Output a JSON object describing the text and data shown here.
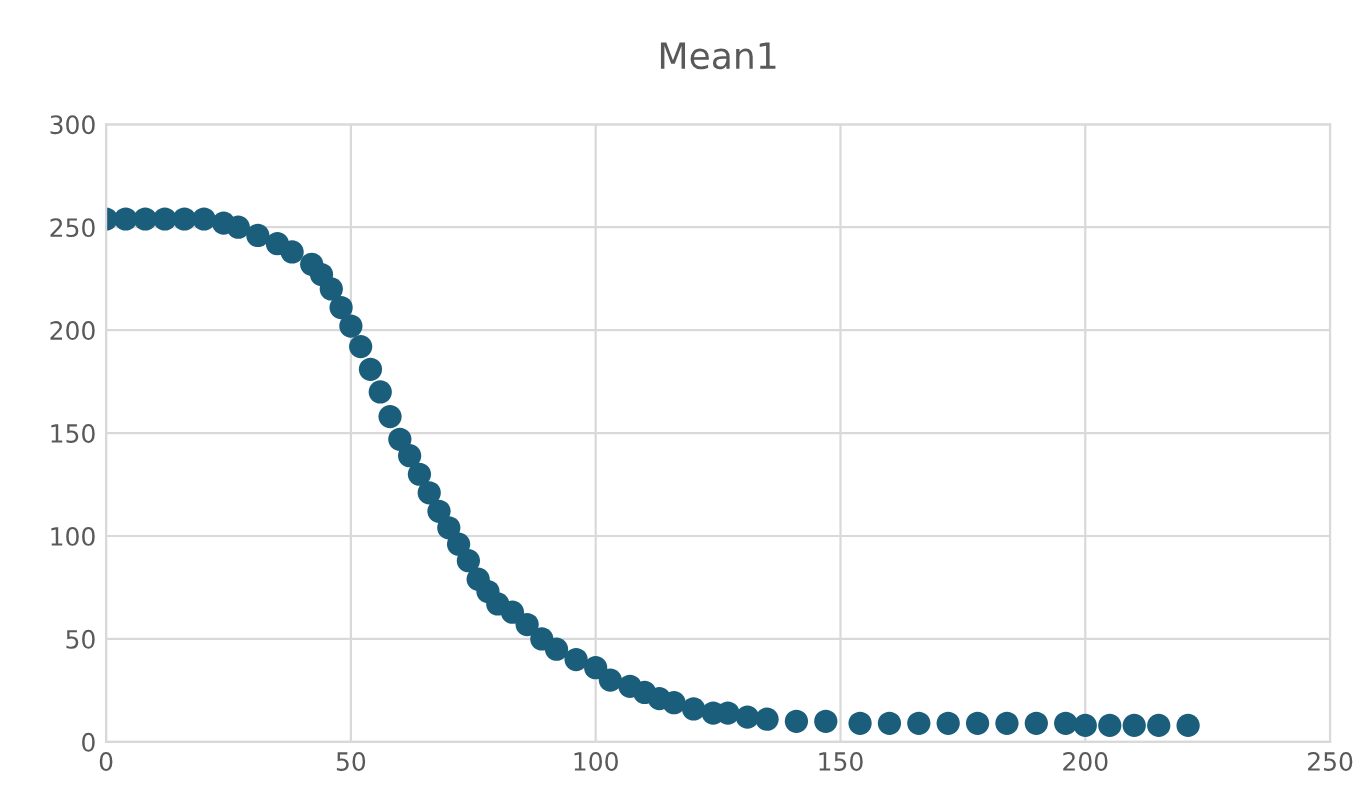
{
  "chart_data": {
    "type": "scatter",
    "title": "Mean1",
    "x": [
      0,
      4,
      8,
      12,
      16,
      20,
      24,
      27,
      31,
      35,
      38,
      42,
      44,
      46,
      48,
      50,
      52,
      54,
      56,
      58,
      60,
      62,
      64,
      66,
      68,
      70,
      72,
      74,
      76,
      78,
      80,
      83,
      86,
      89,
      92,
      96,
      100,
      103,
      107,
      110,
      113,
      116,
      120,
      124,
      127,
      131,
      135,
      141,
      147,
      154,
      160,
      166,
      172,
      178,
      184,
      190,
      196,
      200,
      205,
      210,
      215,
      221
    ],
    "series": [
      {
        "color": "#1b5e7b",
        "values": [
          254,
          254,
          254,
          254,
          254,
          254,
          252,
          250,
          246,
          242,
          238,
          232,
          227,
          220,
          211,
          202,
          192,
          181,
          170,
          158,
          147,
          139,
          130,
          121,
          112,
          104,
          96,
          88,
          79,
          73,
          67,
          63,
          57,
          50,
          45,
          40,
          36,
          30,
          27,
          24,
          21,
          19,
          16,
          14,
          14,
          12,
          11,
          10,
          10,
          9,
          9,
          9,
          9,
          9,
          9,
          9,
          9,
          8,
          8,
          8,
          8,
          8
        ]
      }
    ],
    "xlim": [
      0,
      250
    ],
    "xticks": [
      0,
      50,
      100,
      150,
      200,
      250
    ],
    "ylim": [
      0,
      300
    ],
    "yticks": [
      0,
      50,
      100,
      150,
      200,
      250,
      300
    ],
    "grid": true,
    "marker": "circle"
  }
}
